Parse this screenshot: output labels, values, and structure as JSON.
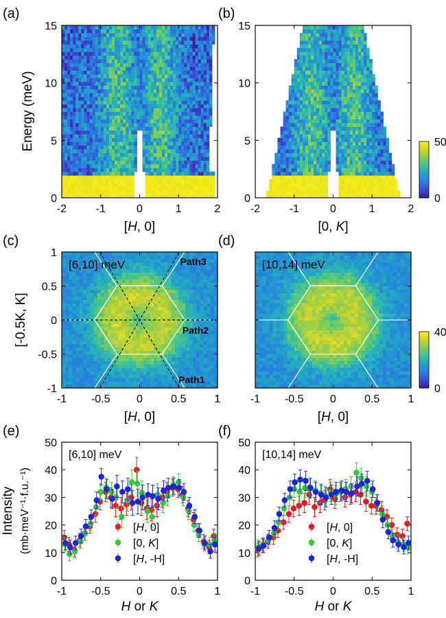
{
  "panel_labels": [
    "(a)",
    "(b)",
    "(c)",
    "(d)",
    "(e)",
    "(f)"
  ],
  "colors": {
    "red": "#e8191f",
    "green": "#35c73a",
    "blue": "#1727d8",
    "cmap": [
      "#3d1a9a",
      "#3b4fd6",
      "#2a7de0",
      "#21a4c9",
      "#37bfa0",
      "#7ecd5b",
      "#c8d12f",
      "#f7ec1a"
    ]
  },
  "chart_data": [
    {
      "id": "a",
      "type": "heatmap",
      "xlabel_pre": "[",
      "xlabel_var": "H",
      "xlabel_post": ", 0]",
      "ylabel": "Energy (meV)",
      "xlim": [
        -2,
        2
      ],
      "ylim": [
        0,
        15
      ],
      "xticks": [
        "-2",
        "-1",
        "0",
        "1",
        "2"
      ],
      "xtick_values": [
        -2,
        -1,
        0,
        1,
        2
      ],
      "yticks": [
        "0",
        "5",
        "10",
        "15"
      ],
      "ytick_values": [
        0,
        5,
        10,
        15
      ]
    },
    {
      "id": "b",
      "type": "heatmap",
      "xlabel_pre": "[0, ",
      "xlabel_var": "K",
      "xlabel_post": "]",
      "xlim": [
        -2,
        2
      ],
      "ylim": [
        0,
        15
      ],
      "xticks": [
        "-2",
        "-1",
        "0",
        "1",
        "2"
      ],
      "xtick_values": [
        -2,
        -1,
        0,
        1,
        2
      ],
      "yticks": [
        "0",
        "5",
        "10",
        "15"
      ],
      "ytick_values": [
        0,
        5,
        10,
        15
      ],
      "colorbar": {
        "min": "0",
        "max": "50"
      }
    },
    {
      "id": "c",
      "type": "heatmap",
      "xlabel_pre": "[",
      "xlabel_var": "H",
      "xlabel_post": ", 0]",
      "ylabel": "[-0.5K, K]",
      "xlim": [
        -1,
        1
      ],
      "ylim": [
        -1,
        1
      ],
      "xticks": [
        "-1",
        "-0.5",
        "0",
        "0.5",
        "1"
      ],
      "xtick_values": [
        -1,
        -0.5,
        0,
        0.5,
        1
      ],
      "yticks": [
        "-1",
        "-0.5",
        "0",
        "0.5",
        "1"
      ],
      "ytick_values": [
        -1,
        -0.5,
        0,
        0.5,
        1
      ],
      "energy_window": "[6,10] meV",
      "path_labels": [
        "Path1",
        "Path2",
        "Path3"
      ]
    },
    {
      "id": "d",
      "type": "heatmap",
      "xlabel_pre": "[",
      "xlabel_var": "H",
      "xlabel_post": ", 0]",
      "xlim": [
        -1,
        1
      ],
      "ylim": [
        -1,
        1
      ],
      "xticks": [
        "-1",
        "-0.5",
        "0",
        "0.5",
        "1"
      ],
      "xtick_values": [
        -1,
        -0.5,
        0,
        0.5,
        1
      ],
      "yticks": [
        "-1",
        "-0.5",
        "0",
        "0.5",
        "1"
      ],
      "ytick_values": [
        -1,
        -0.5,
        0,
        0.5,
        1
      ],
      "energy_window": "[10,14] meV",
      "colorbar": {
        "min": "0",
        "max": "40"
      }
    },
    {
      "id": "e",
      "type": "scatter",
      "xlabel": "H or K",
      "ylabel": "Intensity",
      "ylabel_units": "(mb·meV⁻¹·f.u.⁻¹)",
      "xlim": [
        -1,
        1
      ],
      "ylim": [
        0,
        50
      ],
      "xticks": [
        "-1",
        "-0.5",
        "0",
        "0.5",
        "1"
      ],
      "xtick_values": [
        -1,
        -0.5,
        0,
        0.5,
        1
      ],
      "yticks": [
        "0",
        "10",
        "20",
        "30",
        "40",
        "50"
      ],
      "ytick_values": [
        0,
        10,
        20,
        30,
        40,
        50
      ],
      "energy_window": "[6,10] meV",
      "x": [
        -0.96,
        -0.9,
        -0.83,
        -0.76,
        -0.7,
        -0.63,
        -0.56,
        -0.5,
        -0.43,
        -0.36,
        -0.3,
        -0.23,
        -0.16,
        -0.1,
        -0.03,
        0.03,
        0.1,
        0.16,
        0.23,
        0.3,
        0.36,
        0.43,
        0.5,
        0.56,
        0.63,
        0.7,
        0.76,
        0.83,
        0.9,
        0.96
      ],
      "series": [
        {
          "name": "[H, 0]",
          "symbol_pre": "[",
          "symbol_var": "H",
          "symbol_post": ", 0]",
          "color": "#e8191f",
          "values": [
            15.5,
            13.0,
            11.0,
            14.5,
            17.0,
            19.5,
            24.0,
            28.5,
            32.0,
            30.0,
            27.0,
            26.0,
            27.5,
            30.0,
            40.0,
            28.0,
            26.0,
            25.5,
            27.0,
            30.0,
            32.0,
            33.5,
            33.0,
            31.0,
            26.0,
            22.0,
            18.0,
            14.0,
            12.0,
            16.0
          ],
          "errors": [
            2.5,
            2.5,
            2.5,
            2.5,
            2.5,
            2.5,
            3,
            3,
            3.5,
            3.5,
            4,
            4,
            4,
            4.5,
            4.5,
            4.5,
            4,
            4,
            4,
            3.5,
            3.5,
            3,
            3,
            3,
            3,
            2.5,
            2.5,
            2.5,
            2.5,
            2.5
          ]
        },
        {
          "name": "[0, K]",
          "symbol_pre": "[0, ",
          "symbol_var": "K",
          "symbol_post": "]",
          "color": "#35c73a",
          "values": [
            13.0,
            9.5,
            10.5,
            14.0,
            17.0,
            20.5,
            26.5,
            32.0,
            33.5,
            32.0,
            30.0,
            23.0,
            29.0,
            35.5,
            35.0,
            31.5,
            25.0,
            23.0,
            31.0,
            28.0,
            30.5,
            34.5,
            35.5,
            30.0,
            25.0,
            20.0,
            16.5,
            13.0,
            13.0,
            14.5
          ],
          "errors": [
            2.5,
            2.5,
            2.5,
            2.5,
            2.5,
            2.5,
            3,
            3,
            3.5,
            3.5,
            4,
            4,
            4,
            4.5,
            4.5,
            4.5,
            4,
            4,
            4,
            3.5,
            3.5,
            3,
            3,
            3,
            3,
            2.5,
            2.5,
            2.5,
            2.5,
            2.5
          ]
        },
        {
          "name": "[H, -H]",
          "symbol_pre": "[",
          "symbol_var": "H",
          "symbol_post": ", -H]",
          "color": "#1727d8",
          "values": [
            13.5,
            12.0,
            13.5,
            16.0,
            19.5,
            23.0,
            29.0,
            37.5,
            33.0,
            29.5,
            34.0,
            32.0,
            33.0,
            28.0,
            28.5,
            30.0,
            31.0,
            30.5,
            29.5,
            32.5,
            33.5,
            34.0,
            33.5,
            32.0,
            27.0,
            23.0,
            18.0,
            13.5,
            10.5,
            13.0
          ],
          "errors": [
            2.5,
            2.5,
            2.5,
            2.5,
            2.5,
            2.5,
            3,
            3,
            3.5,
            3.5,
            4,
            4,
            4,
            4.5,
            4.5,
            4.5,
            4,
            4,
            4,
            3.5,
            3.5,
            3,
            3,
            3,
            3,
            2.5,
            2.5,
            2.5,
            2.5,
            2.5
          ]
        }
      ]
    },
    {
      "id": "f",
      "type": "scatter",
      "xlabel": "H or K",
      "xlim": [
        -1,
        1
      ],
      "ylim": [
        0,
        50
      ],
      "xticks": [
        "-1",
        "-0.5",
        "0",
        "0.5",
        "1"
      ],
      "xtick_values": [
        -1,
        -0.5,
        0,
        0.5,
        1
      ],
      "yticks": [
        "0",
        "10",
        "20",
        "30",
        "40",
        "50"
      ],
      "ytick_values": [
        0,
        10,
        20,
        30,
        40,
        50
      ],
      "energy_window": "[10,14] meV",
      "x": [
        -0.96,
        -0.9,
        -0.83,
        -0.76,
        -0.7,
        -0.63,
        -0.56,
        -0.5,
        -0.43,
        -0.36,
        -0.3,
        -0.23,
        -0.16,
        -0.1,
        -0.03,
        0.03,
        0.1,
        0.16,
        0.23,
        0.3,
        0.36,
        0.43,
        0.5,
        0.56,
        0.63,
        0.7,
        0.76,
        0.83,
        0.9,
        0.96
      ],
      "series": [
        {
          "name": "[H, 0]",
          "symbol_pre": "[",
          "symbol_var": "H",
          "symbol_post": ", 0]",
          "color": "#e8191f",
          "values": [
            11.0,
            12.5,
            14.0,
            15.5,
            18.0,
            21.0,
            24.0,
            26.0,
            27.0,
            28.0,
            31.0,
            26.5,
            28.0,
            29.0,
            33.0,
            29.5,
            32.0,
            30.0,
            31.0,
            32.0,
            31.0,
            28.5,
            27.0,
            27.0,
            25.5,
            23.0,
            20.0,
            16.5,
            16.0,
            20.5
          ],
          "errors": [
            2.5,
            2.5,
            2.5,
            2.5,
            2.5,
            2.5,
            3,
            3,
            3.5,
            3.5,
            3.5,
            3.5,
            3.5,
            3.5,
            3.5,
            3.5,
            3.5,
            3.5,
            3.5,
            3.5,
            3.5,
            3.5,
            3,
            3,
            3,
            2.5,
            2.5,
            2.5,
            2.5,
            2.5
          ]
        },
        {
          "name": "[0, K]",
          "symbol_pre": "[0, ",
          "symbol_var": "K",
          "symbol_post": "]",
          "color": "#35c73a",
          "values": [
            12.0,
            13.0,
            14.5,
            17.0,
            21.0,
            26.0,
            30.0,
            33.0,
            32.0,
            33.5,
            33.0,
            32.5,
            31.5,
            30.5,
            32.0,
            31.0,
            32.0,
            33.0,
            34.0,
            39.0,
            37.0,
            34.0,
            32.0,
            28.0,
            24.0,
            20.0,
            16.0,
            14.0,
            13.0,
            12.0
          ],
          "errors": [
            2.5,
            2.5,
            2.5,
            2.5,
            2.5,
            2.5,
            3,
            3,
            3.5,
            3.5,
            3.5,
            3.5,
            3.5,
            3.5,
            3.5,
            3.5,
            3.5,
            3.5,
            3.5,
            3.5,
            3.5,
            3.5,
            3,
            3,
            3,
            2.5,
            2.5,
            2.5,
            2.5,
            2.5
          ]
        },
        {
          "name": "[H, -H]",
          "symbol_pre": "[",
          "symbol_var": "H",
          "symbol_post": ", -H]",
          "color": "#1727d8",
          "values": [
            11.5,
            12.5,
            15.5,
            19.0,
            24.0,
            29.0,
            33.0,
            35.5,
            36.5,
            36.0,
            33.5,
            32.0,
            31.0,
            30.0,
            31.0,
            32.0,
            32.5,
            32.0,
            31.5,
            34.0,
            35.0,
            36.0,
            33.0,
            28.0,
            22.0,
            17.5,
            14.5,
            13.0,
            12.0,
            13.5
          ],
          "errors": [
            2.5,
            2.5,
            2.5,
            2.5,
            2.5,
            2.5,
            3,
            3,
            3.5,
            3.5,
            3.5,
            3.5,
            3.5,
            3.5,
            3.5,
            3.5,
            3.5,
            3.5,
            3.5,
            3.5,
            3.5,
            3.5,
            3,
            3,
            3,
            2.5,
            2.5,
            2.5,
            2.5,
            2.5
          ]
        }
      ]
    }
  ]
}
